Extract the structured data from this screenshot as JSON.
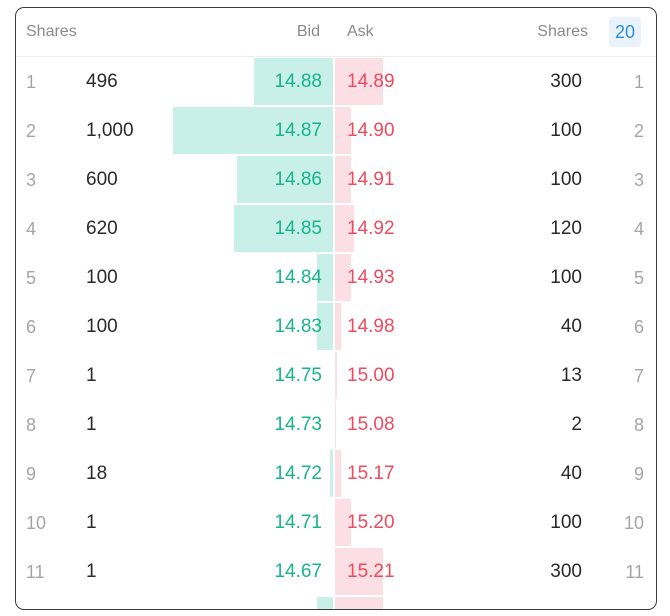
{
  "header": {
    "bid_shares": "Shares",
    "bid": "Bid",
    "ask": "Ask",
    "ask_shares": "Shares",
    "depth": "20"
  },
  "colors": {
    "bid_text": "#18b48c",
    "ask_text": "#ef4a5f",
    "bid_bar": "#c8f0e8",
    "ask_bar": "#fbdfe4",
    "depth_badge": "#2a8fdc"
  },
  "levels": [
    {
      "level": "1",
      "bid_shares": "496",
      "bid": "14.88",
      "ask": "14.89",
      "ask_shares": "300"
    },
    {
      "level": "2",
      "bid_shares": "1,000",
      "bid": "14.87",
      "ask": "14.90",
      "ask_shares": "100"
    },
    {
      "level": "3",
      "bid_shares": "600",
      "bid": "14.86",
      "ask": "14.91",
      "ask_shares": "100"
    },
    {
      "level": "4",
      "bid_shares": "620",
      "bid": "14.85",
      "ask": "14.92",
      "ask_shares": "120"
    },
    {
      "level": "5",
      "bid_shares": "100",
      "bid": "14.84",
      "ask": "14.93",
      "ask_shares": "100"
    },
    {
      "level": "6",
      "bid_shares": "100",
      "bid": "14.83",
      "ask": "14.98",
      "ask_shares": "40"
    },
    {
      "level": "7",
      "bid_shares": "1",
      "bid": "14.75",
      "ask": "15.00",
      "ask_shares": "13"
    },
    {
      "level": "8",
      "bid_shares": "1",
      "bid": "14.73",
      "ask": "15.08",
      "ask_shares": "2"
    },
    {
      "level": "9",
      "bid_shares": "18",
      "bid": "14.72",
      "ask": "15.17",
      "ask_shares": "40"
    },
    {
      "level": "10",
      "bid_shares": "1",
      "bid": "14.71",
      "ask": "15.20",
      "ask_shares": "100"
    },
    {
      "level": "11",
      "bid_shares": "1",
      "bid": "14.67",
      "ask": "15.21",
      "ask_shares": "300"
    }
  ],
  "partial_row": {
    "bid_depth_shares": 100,
    "ask_depth_shares": 300
  }
}
